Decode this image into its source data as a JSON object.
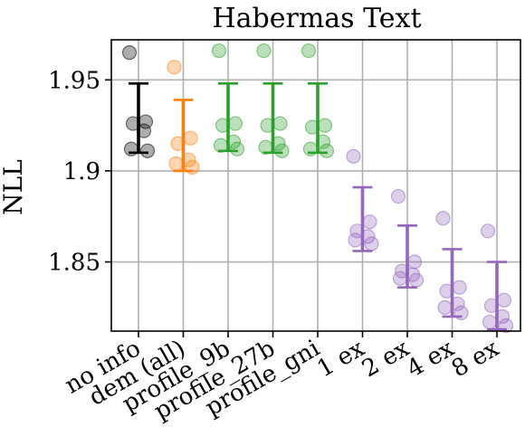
{
  "chart_data": {
    "type": "scatter",
    "title": "Habermas Text",
    "ylabel": "NLL",
    "xlabel": "",
    "ylim": [
      1.812,
      1.972
    ],
    "yticks": [
      {
        "value": 1.85,
        "label": "1.85"
      },
      {
        "value": 1.9,
        "label": "1.9"
      },
      {
        "value": 1.95,
        "label": "1.95"
      }
    ],
    "grid": true,
    "categories": [
      {
        "label": "no info",
        "color": "#000000",
        "mean": 1.929,
        "err_low": 1.91,
        "err_high": 1.948,
        "points": [
          1.965,
          1.927,
          1.926,
          1.922,
          1.912,
          1.911
        ]
      },
      {
        "label": "dem (all)",
        "color": "#ff7f0e",
        "mean": 1.919,
        "err_low": 1.9,
        "err_high": 1.939,
        "points": [
          1.957,
          1.918,
          1.915,
          1.906,
          1.904,
          1.902
        ]
      },
      {
        "label": "profile_9b",
        "color": "#2ca02c",
        "mean": 1.929,
        "err_low": 1.911,
        "err_high": 1.948,
        "points": [
          1.966,
          1.926,
          1.925,
          1.916,
          1.914,
          1.912
        ]
      },
      {
        "label": "profile_27b",
        "color": "#2ca02c",
        "mean": 1.929,
        "err_low": 1.91,
        "err_high": 1.948,
        "points": [
          1.966,
          1.926,
          1.925,
          1.915,
          1.913,
          1.911
        ]
      },
      {
        "label": "profile_gni",
        "color": "#2ca02c",
        "mean": 1.929,
        "err_low": 1.91,
        "err_high": 1.948,
        "points": [
          1.966,
          1.925,
          1.924,
          1.916,
          1.912,
          1.911
        ]
      },
      {
        "label": "1 ex",
        "color": "#9467bd",
        "mean": 1.873,
        "err_low": 1.856,
        "err_high": 1.891,
        "points": [
          1.908,
          1.872,
          1.867,
          1.864,
          1.862,
          1.86
        ]
      },
      {
        "label": "2 ex",
        "color": "#9467bd",
        "mean": 1.853,
        "err_low": 1.836,
        "err_high": 1.87,
        "points": [
          1.886,
          1.85,
          1.845,
          1.843,
          1.841,
          1.84
        ]
      },
      {
        "label": "4 ex",
        "color": "#9467bd",
        "mean": 1.839,
        "err_low": 1.82,
        "err_high": 1.857,
        "points": [
          1.874,
          1.836,
          1.834,
          1.827,
          1.825,
          1.822
        ]
      },
      {
        "label": "8 ex",
        "color": "#9467bd",
        "mean": 1.831,
        "err_low": 1.813,
        "err_high": 1.85,
        "points": [
          1.867,
          1.829,
          1.826,
          1.82,
          1.817,
          1.815
        ]
      }
    ]
  }
}
